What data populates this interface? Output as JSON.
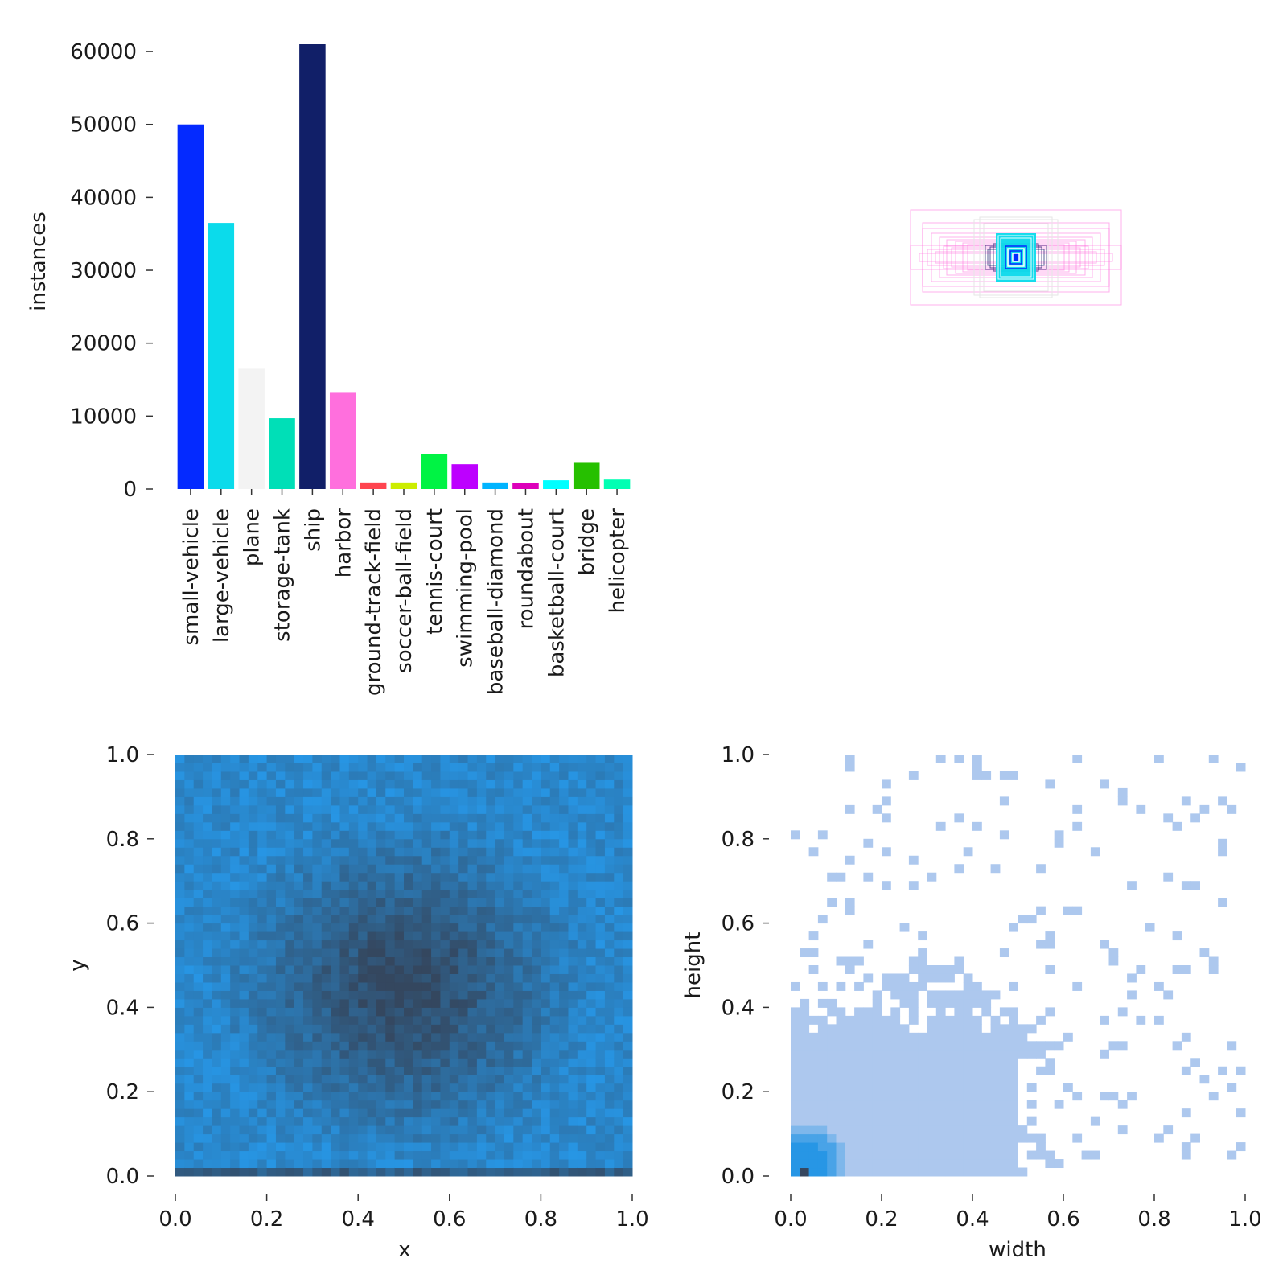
{
  "chart_data": [
    {
      "type": "bar",
      "title": "",
      "xlabel": "",
      "ylabel": "instances",
      "ylim": [
        0,
        61000
      ],
      "yticks": [
        0,
        10000,
        20000,
        30000,
        40000,
        50000,
        60000
      ],
      "categories": [
        "small-vehicle",
        "large-vehicle",
        "plane",
        "storage-tank",
        "ship",
        "harbor",
        "ground-track-field",
        "soccer-ball-field",
        "tennis-court",
        "swimming-pool",
        "baseball-diamond",
        "roundabout",
        "basketball-court",
        "bridge",
        "helicopter"
      ],
      "values": [
        50000,
        36500,
        16500,
        9700,
        61000,
        13300,
        900,
        900,
        4800,
        3400,
        900,
        800,
        1200,
        3700,
        1300
      ],
      "colors": [
        "#042AFF",
        "#0BDBEB",
        "#F3F3F3",
        "#00DFB7",
        "#111F68",
        "#FF6FDD",
        "#FF444F",
        "#CCED00",
        "#00F344",
        "#BD00FF",
        "#00B4FF",
        "#DD00BA",
        "#00FFFF",
        "#26C000",
        "#01FFB3"
      ]
    },
    {
      "type": "box-overlay",
      "title": "",
      "description": "Bounding boxes of all labels drawn centered at (0.5, 0.5), colored by class",
      "box_colors": [
        "#FF6FDD",
        "#111F68",
        "#0BDBEB",
        "#042AFF",
        "#F3F3F3"
      ]
    },
    {
      "type": "heatmap",
      "title": "",
      "xlabel": "x",
      "ylabel": "y",
      "xlim": [
        0,
        1
      ],
      "ylim": [
        0,
        1
      ],
      "xticks": [
        "0.0",
        "0.2",
        "0.4",
        "0.6",
        "0.8",
        "1.0"
      ],
      "yticks": [
        "0.0",
        "0.2",
        "0.4",
        "0.6",
        "0.8",
        "1.0"
      ],
      "bins": 50,
      "center_density": [
        0.5,
        0.45
      ],
      "color_light": "#2796E5",
      "color_dark": "#34475F"
    },
    {
      "type": "heatmap",
      "title": "",
      "xlabel": "width",
      "ylabel": "height",
      "xlim": [
        0,
        1
      ],
      "ylim": [
        0,
        1
      ],
      "xticks": [
        "0.0",
        "0.2",
        "0.4",
        "0.6",
        "0.8",
        "1.0"
      ],
      "yticks": [
        "0.0",
        "0.2",
        "0.4",
        "0.6",
        "0.8",
        "1.0"
      ],
      "bins": 50,
      "color_base": "#ADC8EE",
      "color_peak": "#36475F",
      "peak_at": [
        0.03,
        0.03
      ]
    }
  ]
}
